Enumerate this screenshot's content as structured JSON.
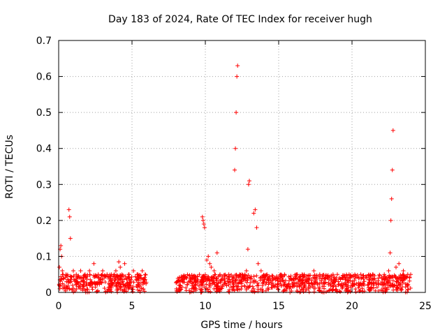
{
  "chart_data": {
    "type": "scatter",
    "title": "Day 183 of 2024, Rate Of TEC Index for receiver hugh",
    "xlabel": "GPS time / hours",
    "ylabel": "ROTI / TECUs",
    "xlim": [
      0,
      25
    ],
    "ylim": [
      0,
      0.7
    ],
    "xticks": [
      0,
      5,
      10,
      15,
      20,
      25
    ],
    "yticks": [
      0,
      0.1,
      0.2,
      0.3,
      0.4,
      0.5,
      0.6,
      0.7
    ],
    "xtick_labels": [
      "0",
      "5",
      "10",
      "15",
      "20",
      "25"
    ],
    "ytick_labels": [
      "0",
      "0.1",
      "0.2",
      "0.3",
      "0.4",
      "0.5",
      "0.6",
      "0.7"
    ],
    "grid": true,
    "marker": "+",
    "color": "#ff0000",
    "series": [
      {
        "x": [
          0.05,
          0.1,
          0.15,
          0.2,
          0.25,
          0.3,
          0.35,
          0.5,
          0.7,
          0.75,
          0.8,
          1.0,
          1.2,
          1.5,
          1.8,
          2.1,
          2.4,
          2.7,
          3.0,
          3.3,
          3.6,
          3.9,
          4.1,
          4.2,
          4.5,
          4.8,
          5.1,
          5.4,
          5.7,
          5.9,
          8.1,
          8.4,
          8.7,
          9.0,
          9.3,
          9.6,
          9.8,
          9.85,
          9.9,
          9.95,
          10.1,
          10.2,
          10.3,
          10.4,
          10.6,
          10.8,
          11.0,
          11.3,
          11.6,
          11.9,
          12.0,
          12.05,
          12.1,
          12.15,
          12.2,
          12.5,
          12.7,
          12.8,
          12.9,
          12.95,
          13.0,
          13.3,
          13.4,
          13.5,
          13.6,
          13.8,
          14.2,
          14.6,
          15.0,
          15.4,
          15.8,
          16.2,
          16.6,
          17.0,
          17.4,
          17.8,
          18.2,
          18.6,
          19.0,
          19.4,
          19.8,
          20.2,
          20.6,
          21.0,
          21.4,
          21.8,
          22.2,
          22.5,
          22.6,
          22.65,
          22.7,
          22.75,
          22.8,
          23.0,
          23.2,
          23.5,
          23.8,
          24.0
        ],
        "y": [
          0.07,
          0.12,
          0.13,
          0.1,
          0.06,
          0.05,
          0.04,
          0.05,
          0.23,
          0.21,
          0.15,
          0.06,
          0.05,
          0.06,
          0.05,
          0.06,
          0.08,
          0.05,
          0.06,
          0.05,
          0.05,
          0.06,
          0.085,
          0.07,
          0.08,
          0.05,
          0.06,
          0.05,
          0.06,
          0.05,
          0.03,
          0.04,
          0.04,
          0.03,
          0.04,
          0.05,
          0.21,
          0.2,
          0.19,
          0.18,
          0.09,
          0.1,
          0.08,
          0.07,
          0.06,
          0.11,
          0.05,
          0.04,
          0.05,
          0.04,
          0.34,
          0.4,
          0.5,
          0.6,
          0.63,
          0.05,
          0.05,
          0.06,
          0.12,
          0.3,
          0.31,
          0.22,
          0.23,
          0.18,
          0.08,
          0.06,
          0.05,
          0.04,
          0.04,
          0.05,
          0.04,
          0.04,
          0.05,
          0.04,
          0.06,
          0.05,
          0.04,
          0.04,
          0.05,
          0.04,
          0.05,
          0.04,
          0.05,
          0.04,
          0.05,
          0.04,
          0.05,
          0.06,
          0.11,
          0.2,
          0.26,
          0.34,
          0.45,
          0.07,
          0.08,
          0.06,
          0.05,
          0.05
        ]
      }
    ],
    "dense_band": {
      "segments": [
        [
          0.0,
          6.0
        ],
        [
          8.0,
          24.0
        ]
      ],
      "y_range": [
        0.0,
        0.05
      ]
    }
  }
}
